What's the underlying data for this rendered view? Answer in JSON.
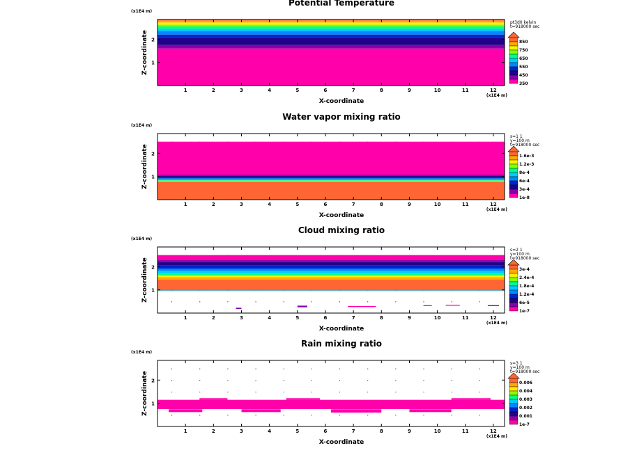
{
  "chart_data": [
    {
      "type": "heatmap",
      "title": "Potential Temperature",
      "xlabel": "X-coordinate",
      "ylabel": "Z-coordinate",
      "x_unit": "(x1E4 m)",
      "z_unit": "(x1E4 m)",
      "xlim": [
        0,
        12.4
      ],
      "ylim": [
        0,
        2.85
      ],
      "x_ticks": [
        "1",
        "2",
        "3",
        "4",
        "5",
        "6",
        "7",
        "8",
        "9",
        "10",
        "11",
        "12"
      ],
      "z_ticks": [
        "1",
        "2"
      ],
      "info": [
        "pt3d0 kelvin",
        "t=918000 sec"
      ],
      "colorbar_labels": [
        "850",
        "750",
        "650",
        "550",
        "450",
        "350"
      ],
      "colors": [
        "#ff00aa",
        "#8800aa",
        "#220088",
        "#0022cc",
        "#0088ff",
        "#00ccff",
        "#00ff88",
        "#88ff00",
        "#ffee00",
        "#ffaa00",
        "#ff6633"
      ],
      "bands": [
        {
          "z0": 0,
          "z1": 1.6,
          "level": 0
        },
        {
          "z0": 1.6,
          "z1": 1.75,
          "level": 1
        },
        {
          "z0": 1.75,
          "z1": 2.05,
          "level": 2
        },
        {
          "z0": 2.05,
          "z1": 2.2,
          "level": 3
        },
        {
          "z0": 2.2,
          "z1": 2.35,
          "level": 4
        },
        {
          "z0": 2.35,
          "z1": 2.45,
          "level": 5
        },
        {
          "z0": 2.45,
          "z1": 2.55,
          "level": 6
        },
        {
          "z0": 2.55,
          "z1": 2.63,
          "level": 7
        },
        {
          "z0": 2.63,
          "z1": 2.72,
          "level": 8
        },
        {
          "z0": 2.72,
          "z1": 2.8,
          "level": 9
        },
        {
          "z0": 2.8,
          "z1": 2.85,
          "level": 10
        }
      ],
      "blobs": []
    },
    {
      "type": "heatmap",
      "title": "Water vapor mixing ratio",
      "xlabel": "X-coordinate",
      "ylabel": "Z-coordinate",
      "x_unit": "(x1E4 m)",
      "z_unit": "(x1E4 m)",
      "xlim": [
        0,
        12.4
      ],
      "ylim": [
        0,
        2.85
      ],
      "x_ticks": [
        "1",
        "2",
        "3",
        "4",
        "5",
        "6",
        "7",
        "8",
        "9",
        "10",
        "11",
        "12"
      ],
      "z_ticks": [
        "1",
        "2"
      ],
      "info": [
        "s=1 1",
        "y=100 m",
        "t=918000 sec"
      ],
      "colorbar_labels": [
        "1.6e-3",
        "1.2e-3",
        "8e-4",
        "6e-4",
        "3e-4",
        "1e-8"
      ],
      "colors": [
        "#ff00aa",
        "#8800aa",
        "#220088",
        "#0022cc",
        "#0088ff",
        "#00ccff",
        "#00ff88",
        "#88ff00",
        "#ffee00",
        "#ffaa00",
        "#ff6633"
      ],
      "bands": [
        {
          "z0": 0,
          "z1": 0.78,
          "level": 10
        },
        {
          "z0": 0.78,
          "z1": 0.82,
          "level": 8
        },
        {
          "z0": 0.82,
          "z1": 0.86,
          "level": 6
        },
        {
          "z0": 0.86,
          "z1": 0.92,
          "level": 4
        },
        {
          "z0": 0.92,
          "z1": 0.97,
          "level": 3
        },
        {
          "z0": 0.97,
          "z1": 1.03,
          "level": 2
        },
        {
          "z0": 1.03,
          "z1": 1.08,
          "level": 1
        },
        {
          "z0": 1.08,
          "z1": 2.5,
          "level": 0
        }
      ],
      "blobs": []
    },
    {
      "type": "heatmap",
      "title": "Cloud mixing ratio",
      "xlabel": "X-coordinate",
      "ylabel": "Z-coordinate",
      "x_unit": "(x1E4 m)",
      "z_unit": "(x1E4 m)",
      "xlim": [
        0,
        12.4
      ],
      "ylim": [
        0,
        2.85
      ],
      "x_ticks": [
        "1",
        "2",
        "3",
        "4",
        "5",
        "6",
        "7",
        "8",
        "9",
        "10",
        "11",
        "12"
      ],
      "z_ticks": [
        "1",
        "2"
      ],
      "info": [
        "s=2 1",
        "y=100 m",
        "t=918000 sec"
      ],
      "colorbar_labels": [
        "3e-4",
        "2.4e-4",
        "1.8e-4",
        "1.2e-4",
        "6e-5",
        "1e-7"
      ],
      "colors": [
        "#ff00aa",
        "#8800aa",
        "#220088",
        "#0022cc",
        "#0088ff",
        "#00ccff",
        "#00ff88",
        "#88ff00",
        "#ffee00",
        "#ffaa00",
        "#ff6633"
      ],
      "bands": [
        {
          "z0": 0.95,
          "z1": 0.98,
          "level": 5
        },
        {
          "z0": 0.98,
          "z1": 1.45,
          "level": 10
        },
        {
          "z0": 1.45,
          "z1": 1.55,
          "level": 9
        },
        {
          "z0": 1.55,
          "z1": 1.63,
          "level": 8
        },
        {
          "z0": 1.63,
          "z1": 1.72,
          "level": 6
        },
        {
          "z0": 1.72,
          "z1": 1.82,
          "level": 5
        },
        {
          "z0": 1.82,
          "z1": 1.92,
          "level": 4
        },
        {
          "z0": 1.92,
          "z1": 2.05,
          "level": 3
        },
        {
          "z0": 2.05,
          "z1": 2.2,
          "level": 2
        },
        {
          "z0": 2.2,
          "z1": 2.3,
          "level": 1
        },
        {
          "z0": 2.3,
          "z1": 2.5,
          "level": 0
        }
      ],
      "blobs": [
        {
          "x": 2.8,
          "z": 0.18,
          "w": 0.2,
          "h": 0.05,
          "level": 1
        },
        {
          "x": 5.0,
          "z": 0.25,
          "w": 0.35,
          "h": 0.07,
          "level": 1
        },
        {
          "x": 6.8,
          "z": 0.26,
          "w": 1.0,
          "h": 0.04,
          "level": 0
        },
        {
          "x": 9.5,
          "z": 0.3,
          "w": 0.3,
          "h": 0.04,
          "level": 0
        },
        {
          "x": 10.3,
          "z": 0.32,
          "w": 0.5,
          "h": 0.04,
          "level": 0
        },
        {
          "x": 11.8,
          "z": 0.3,
          "w": 0.4,
          "h": 0.04,
          "level": 1
        }
      ]
    },
    {
      "type": "heatmap",
      "title": "Rain mixing ratio",
      "xlabel": "X-coordinate",
      "ylabel": "Z-coordinate",
      "x_unit": "(x1E4 m)",
      "z_unit": "(x1E4 m)",
      "xlim": [
        0,
        12.4
      ],
      "ylim": [
        0,
        2.85
      ],
      "x_ticks": [
        "1",
        "2",
        "3",
        "4",
        "5",
        "6",
        "7",
        "8",
        "9",
        "10",
        "11",
        "12"
      ],
      "z_ticks": [
        "1",
        "2"
      ],
      "info": [
        "s=3 1",
        "y=100 m",
        "t=918000 sec"
      ],
      "colorbar_labels": [
        "0.006",
        "0.004",
        "0.003",
        "0.002",
        "0.001",
        "1e-7"
      ],
      "colors": [
        "#ff00aa",
        "#8800aa",
        "#220088",
        "#0022cc",
        "#0088ff",
        "#00ccff",
        "#00ff88",
        "#88ff00",
        "#ffee00",
        "#ffaa00",
        "#ff6633"
      ],
      "bands": [
        {
          "z0": 0.75,
          "z1": 1.15,
          "level": 0
        }
      ],
      "blobs": [
        {
          "x": 0.4,
          "z": 0.62,
          "w": 1.2,
          "h": 0.12,
          "level": 0
        },
        {
          "x": 3.0,
          "z": 0.62,
          "w": 1.4,
          "h": 0.12,
          "level": 0
        },
        {
          "x": 6.2,
          "z": 0.6,
          "w": 1.8,
          "h": 0.14,
          "level": 0
        },
        {
          "x": 9.0,
          "z": 0.62,
          "w": 1.5,
          "h": 0.12,
          "level": 0
        },
        {
          "x": 1.5,
          "z": 1.15,
          "w": 1.0,
          "h": 0.07,
          "level": 0
        },
        {
          "x": 4.6,
          "z": 1.15,
          "w": 1.2,
          "h": 0.07,
          "level": 0
        },
        {
          "x": 10.5,
          "z": 1.15,
          "w": 1.4,
          "h": 0.07,
          "level": 0
        }
      ]
    }
  ]
}
